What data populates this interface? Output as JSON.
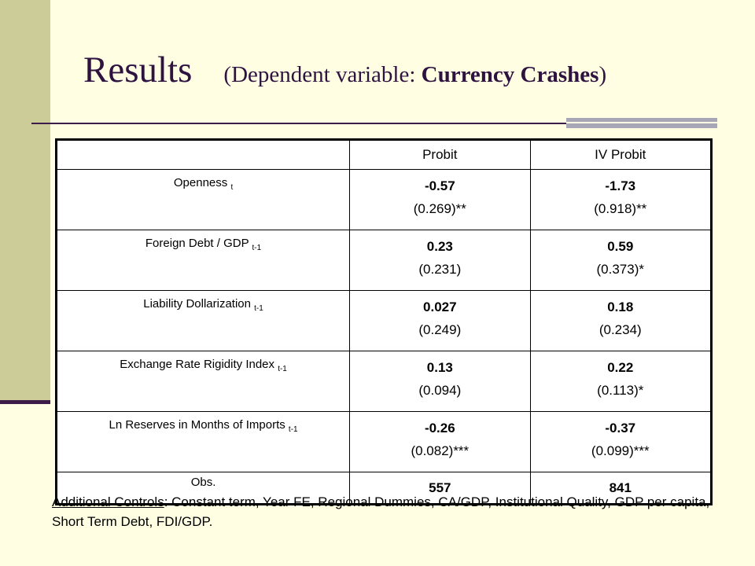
{
  "slide": {
    "title": "Results",
    "subtitle_prefix": "(Dependent variable: ",
    "subtitle_bold": "Currency Crashes",
    "subtitle_suffix": ")"
  },
  "table": {
    "headers": [
      "",
      "Probit",
      "IV Probit"
    ],
    "rows": [
      {
        "label": "Openness",
        "subscript": "t",
        "probit_coef": "-0.57",
        "probit_se": "(0.269)**",
        "iv_coef": "-1.73",
        "iv_se": "(0.918)**"
      },
      {
        "label": "Foreign Debt / GDP",
        "subscript": "t-1",
        "probit_coef": "0.23",
        "probit_se": "(0.231)",
        "iv_coef": "0.59",
        "iv_se": "(0.373)*"
      },
      {
        "label": "Liability Dollarization",
        "subscript": "t-1",
        "probit_coef": "0.027",
        "probit_se": "(0.249)",
        "iv_coef": "0.18",
        "iv_se": "(0.234)"
      },
      {
        "label": "Exchange Rate Rigidity Index",
        "subscript": "t-1",
        "probit_coef": "0.13",
        "probit_se": "(0.094)",
        "iv_coef": "0.22",
        "iv_se": "(0.113)*"
      },
      {
        "label": "Ln Reserves in Months of Imports",
        "subscript": "t-1",
        "probit_coef": "-0.26",
        "probit_se": "(0.082)***",
        "iv_coef": "-0.37",
        "iv_se": "(0.099)***"
      }
    ],
    "obs": {
      "label": "Obs.",
      "probit": "557",
      "iv": "841"
    }
  },
  "footnote": {
    "heading": "Additional Controls",
    "text": ": Constant term, Year FE, Regional Dummies, CA/GDP, Institutional Quality, GDP per capita, Short Term Debt, FDI/GDP."
  },
  "colors": {
    "background": "#fffee3",
    "side_bar": "#cccc99",
    "title": "#2e1240",
    "accent_rule": "#3d1c4a",
    "gray_rule": "#a7a7b8"
  }
}
